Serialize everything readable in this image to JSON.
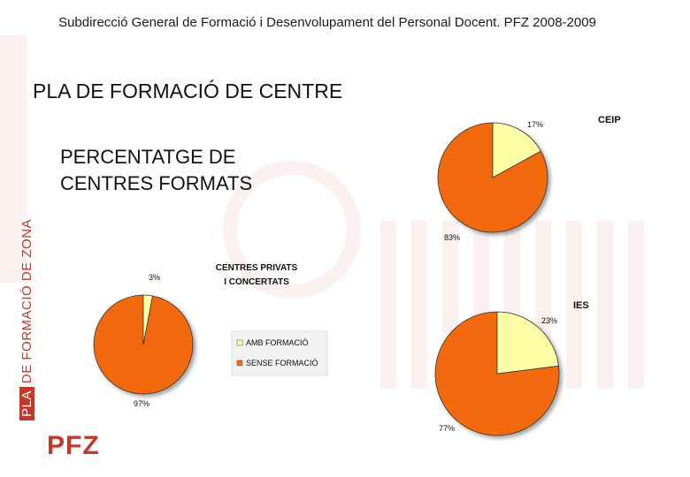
{
  "slide": {
    "header": "Subdirecció General de Formació i Desenvolupament del Personal Docent. PFZ 2008-2009",
    "title": "PLA DE FORMACIÓ DE CENTRE",
    "subtitle_line1": "PERCENTATGE DE",
    "subtitle_line2": "CENTRES FORMATS",
    "side_label_pla": "PLA",
    "side_label_rest": "DE FORMACIÓ DE ZONA",
    "logo": "PFZ"
  },
  "colors": {
    "formacio": "#ffffa8",
    "sense_formacio": "#f26b0f",
    "accent_red": "#c0392b"
  },
  "chart_data": [
    {
      "type": "pie",
      "title": "CEIP",
      "categories": [
        "AMB FORMACIÓ",
        "SENSE FORMACIÓ"
      ],
      "values": [
        17,
        83
      ],
      "labels": [
        "17%",
        "83%"
      ]
    },
    {
      "type": "pie",
      "title": "CENTRES PRIVATS I CONCERTATS",
      "title_line1": "CENTRES PRIVATS",
      "title_line2": "I CONCERTATS",
      "categories": [
        "AMB FORMACIÓ",
        "SENSE FORMACIÓ"
      ],
      "values": [
        3,
        97
      ],
      "labels": [
        "3%",
        "97%"
      ],
      "legend": [
        "AMB FORMACIÓ",
        "SENSE FORMACIÓ"
      ]
    },
    {
      "type": "pie",
      "title": "IES",
      "categories": [
        "AMB FORMACIÓ",
        "SENSE FORMACIÓ"
      ],
      "values": [
        23,
        77
      ],
      "labels": [
        "23%",
        "77%"
      ]
    }
  ]
}
